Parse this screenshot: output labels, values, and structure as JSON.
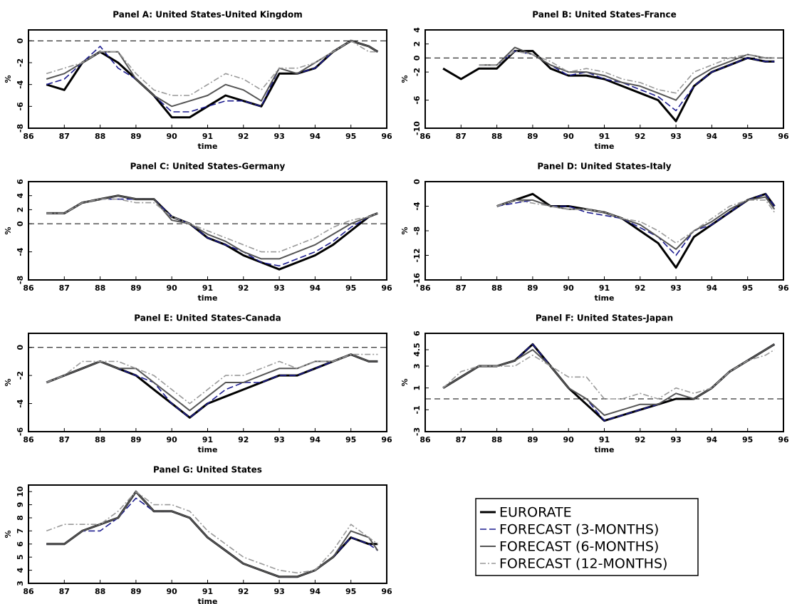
{
  "chart_data": [
    {
      "type": "line",
      "title": "Panel A: United States-United Kingdom",
      "xlabel": "time",
      "ylabel": "%",
      "x": [
        86.5,
        87,
        87.5,
        88,
        88.5,
        89,
        89.5,
        90,
        90.5,
        91,
        91.5,
        92,
        92.5,
        93,
        93.5,
        94,
        94.5,
        95,
        95.5,
        95.75
      ],
      "xlim": [
        86,
        96
      ],
      "xticks": [
        86,
        87,
        88,
        89,
        90,
        91,
        92,
        93,
        94,
        95,
        96
      ],
      "ylim": [
        -8,
        1
      ],
      "yticks": [
        -8,
        -6,
        -4,
        -2,
        0
      ],
      "refline": 0,
      "series": [
        {
          "name": "EURORATE",
          "color": "#000000",
          "values": [
            -4,
            -4.5,
            -2,
            -1,
            -2,
            -3.5,
            -5,
            -7,
            -7,
            -6,
            -5,
            -5.5,
            -6,
            -3,
            -3,
            -2.5,
            -1,
            0,
            -0.5,
            -1
          ]
        },
        {
          "name": "FORECAST (3-MONTHS)",
          "color": "#1c1c8f",
          "values": [
            -4,
            -3.5,
            -2,
            -0.5,
            -2.5,
            -3.5,
            -5,
            -6.5,
            -6.5,
            -6,
            -5.5,
            -5.5,
            -6,
            -2.5,
            -3,
            -2.5,
            -1,
            0,
            -0.5,
            -1
          ]
        },
        {
          "name": "FORECAST (6-MONTHS)",
          "color": "#555555",
          "values": [
            -3.5,
            -3,
            -2,
            -1,
            -1,
            -3.5,
            -5,
            -6,
            -5.5,
            -5,
            -4,
            -4.5,
            -5.5,
            -2.5,
            -3,
            -2,
            -1,
            0,
            -0.5,
            -1
          ]
        },
        {
          "name": "FORECAST (12-MONTHS)",
          "color": "#999999",
          "values": [
            -3,
            -2.5,
            -2,
            -1,
            -1,
            -3,
            -4.5,
            -5,
            -5,
            -4,
            -3,
            -3.5,
            -4.5,
            -2.5,
            -2.5,
            -2,
            -1,
            0,
            -1,
            -1
          ]
        }
      ]
    },
    {
      "type": "line",
      "title": "Panel B: United States-France",
      "xlabel": "time",
      "ylabel": "%",
      "x": [
        86.5,
        87,
        87.5,
        88,
        88.5,
        89,
        89.5,
        90,
        90.5,
        91,
        91.5,
        92,
        92.5,
        93,
        93.5,
        94,
        94.5,
        95,
        95.5,
        95.75
      ],
      "xlim": [
        86,
        96
      ],
      "xticks": [
        86,
        87,
        88,
        89,
        90,
        91,
        92,
        93,
        94,
        95,
        96
      ],
      "ylim": [
        -10,
        4
      ],
      "yticks": [
        -10,
        -6,
        -2,
        0,
        2,
        4
      ],
      "refline": 0,
      "series": [
        {
          "color": "#000000",
          "values": [
            -1.5,
            -3,
            -1.5,
            -1.5,
            1,
            1,
            -1.5,
            -2.5,
            -2.5,
            -3,
            -4,
            -5,
            -6,
            -9,
            -4,
            -2,
            -1,
            0,
            -0.5,
            -0.5
          ]
        },
        {
          "color": "#1c1c8f",
          "values": [
            null,
            null,
            -1,
            -1,
            1,
            0.5,
            -1,
            -2.5,
            -2,
            -3,
            -3.5,
            -4.5,
            -5.5,
            -7.5,
            -4,
            -2,
            -1,
            0,
            -0.5,
            -0.5
          ]
        },
        {
          "color": "#555555",
          "values": [
            null,
            null,
            -1,
            -1,
            1.5,
            0.5,
            -1,
            -2,
            -2,
            -2.5,
            -3.5,
            -4,
            -5,
            -6,
            -3,
            -1.5,
            -0.5,
            0.5,
            0,
            0
          ]
        },
        {
          "color": "#999999",
          "values": [
            null,
            null,
            -1,
            -1,
            1,
            0.5,
            -0.5,
            -2,
            -1.5,
            -2,
            -3,
            -3.5,
            -4.5,
            -5,
            -2,
            -1,
            0,
            0.5,
            0,
            0
          ]
        }
      ]
    },
    {
      "type": "line",
      "title": "Panel C: United States-Germany",
      "xlabel": "time",
      "ylabel": "%",
      "x": [
        86.5,
        87,
        87.5,
        88,
        88.5,
        89,
        89.5,
        90,
        90.5,
        91,
        91.5,
        92,
        92.5,
        93,
        93.5,
        94,
        94.5,
        95,
        95.5,
        95.75
      ],
      "xlim": [
        86,
        96
      ],
      "xticks": [
        86,
        87,
        88,
        89,
        90,
        91,
        92,
        93,
        94,
        95,
        96
      ],
      "ylim": [
        -8,
        6
      ],
      "yticks": [
        -8,
        -4,
        0,
        2,
        4,
        6
      ],
      "refline": 0,
      "series": [
        {
          "color": "#000000",
          "values": [
            1.5,
            1.5,
            3,
            3.5,
            4,
            3.5,
            3.5,
            1,
            0,
            -2,
            -3,
            -4.5,
            -5.5,
            -6.5,
            -5.5,
            -4.5,
            -3,
            -1,
            1,
            1.5
          ]
        },
        {
          "color": "#1c1c8f",
          "values": [
            1.5,
            1.5,
            3,
            3.5,
            3.5,
            3.5,
            3.5,
            1,
            0,
            -2,
            -3,
            -4,
            -5.5,
            -6,
            -5,
            -4,
            -2.5,
            -0.5,
            1,
            1.5
          ]
        },
        {
          "color": "#555555",
          "values": [
            1.5,
            1.5,
            3,
            3.5,
            4,
            3.5,
            3.5,
            0.5,
            0,
            -1.5,
            -2.5,
            -4,
            -5,
            -5,
            -4,
            -3,
            -1.5,
            0,
            1,
            1.5
          ]
        },
        {
          "color": "#999999",
          "values": [
            1.5,
            1.5,
            3,
            3.5,
            3.5,
            3,
            3,
            1,
            0,
            -1,
            -2,
            -3,
            -4,
            -4,
            -3,
            -2,
            -0.5,
            0.5,
            1,
            1.5
          ]
        }
      ]
    },
    {
      "type": "line",
      "title": "Panel D: United States-Italy",
      "xlabel": "time",
      "ylabel": "%",
      "x": [
        86.5,
        87,
        87.5,
        88,
        88.5,
        89,
        89.5,
        90,
        90.5,
        91,
        91.5,
        92,
        92.5,
        93,
        93.5,
        94,
        94.5,
        95,
        95.5,
        95.75
      ],
      "xlim": [
        86,
        96
      ],
      "xticks": [
        86,
        87,
        88,
        89,
        90,
        91,
        92,
        93,
        94,
        95,
        96
      ],
      "ylim": [
        -16,
        0
      ],
      "yticks": [
        -16,
        -12,
        -8,
        -4,
        0
      ],
      "refline": 0,
      "series": [
        {
          "color": "#000000",
          "values": [
            null,
            null,
            null,
            -4,
            -3,
            -2,
            -4,
            -4,
            -4.5,
            -5,
            -6,
            -8,
            -10,
            -14,
            -9,
            -7,
            -5,
            -3,
            -2,
            -4
          ]
        },
        {
          "color": "#1c1c8f",
          "values": [
            null,
            null,
            null,
            -4,
            -3.5,
            -3,
            -4,
            -4,
            -5,
            -5.5,
            -6,
            -7.5,
            -9,
            -12,
            -8,
            -7,
            -5,
            -3,
            -2,
            -4
          ]
        },
        {
          "color": "#555555",
          "values": [
            null,
            null,
            null,
            -4,
            -3,
            -3,
            -4,
            -4.5,
            -4.5,
            -5,
            -6,
            -7,
            -9,
            -11,
            -8,
            -6.5,
            -4.5,
            -3,
            -2.5,
            -4.5
          ]
        },
        {
          "color": "#999999",
          "values": [
            null,
            null,
            null,
            -4,
            -3,
            -3.5,
            -4,
            -4.5,
            -4.5,
            -5,
            -6,
            -6.5,
            -8,
            -10,
            -8,
            -6,
            -4,
            -3,
            -3,
            -5
          ]
        }
      ]
    },
    {
      "type": "line",
      "title": "Panel E: United States-Canada",
      "xlabel": "time",
      "ylabel": "%",
      "x": [
        86.5,
        87,
        87.5,
        88,
        88.5,
        89,
        89.5,
        90,
        90.5,
        91,
        91.5,
        92,
        92.5,
        93,
        93.5,
        94,
        94.5,
        95,
        95.5,
        95.75
      ],
      "xlim": [
        86,
        96
      ],
      "xticks": [
        86,
        87,
        88,
        89,
        90,
        91,
        92,
        93,
        94,
        95,
        96
      ],
      "ylim": [
        -6,
        1
      ],
      "yticks": [
        -6,
        -4,
        -2,
        0
      ],
      "refline": 0,
      "series": [
        {
          "color": "#000000",
          "values": [
            -2.5,
            -2,
            -1.5,
            -1,
            -1.5,
            -2,
            -3,
            -4,
            -5,
            -4,
            -3.5,
            -3,
            -2.5,
            -2,
            -2,
            -1.5,
            -1,
            -0.5,
            -1,
            -1
          ]
        },
        {
          "color": "#1c1c8f",
          "values": [
            -2.5,
            -2,
            -1.5,
            -1,
            -1.5,
            -2,
            -2.5,
            -4,
            -5,
            -4,
            -3,
            -2.5,
            -2.5,
            -2,
            -2,
            -1.5,
            -1,
            -0.5,
            -1,
            -1
          ]
        },
        {
          "color": "#555555",
          "values": [
            -2.5,
            -2,
            -1.5,
            -1,
            -1.5,
            -1.5,
            -2.5,
            -3.5,
            -4.5,
            -3.5,
            -2.5,
            -2.5,
            -2,
            -1.5,
            -1.5,
            -1,
            -1,
            -0.5,
            -1,
            -1
          ]
        },
        {
          "color": "#999999",
          "values": [
            -2.5,
            -2,
            -1,
            -1,
            -1,
            -1.5,
            -2,
            -3,
            -4,
            -3,
            -2,
            -2,
            -1.5,
            -1,
            -1.5,
            -1,
            -1,
            -0.5,
            -0.5,
            -0.5
          ]
        }
      ]
    },
    {
      "type": "line",
      "title": "Panel F: United States-Japan",
      "xlabel": "time",
      "ylabel": "%",
      "x": [
        86.5,
        87,
        87.5,
        88,
        88.5,
        89,
        89.5,
        90,
        90.5,
        91,
        91.5,
        92,
        92.5,
        93,
        93.5,
        94,
        94.5,
        95,
        95.5,
        95.75
      ],
      "xlim": [
        86,
        96
      ],
      "xticks": [
        86,
        87,
        88,
        89,
        90,
        91,
        92,
        93,
        94,
        95,
        96
      ],
      "ylim": [
        -3,
        6
      ],
      "yticks": [
        -3,
        -1,
        1,
        3,
        4.5,
        6
      ],
      "refline": 0,
      "series": [
        {
          "color": "#000000",
          "values": [
            1,
            2,
            3,
            3,
            3.5,
            5,
            3,
            1,
            -0.5,
            -2,
            -1.5,
            -1,
            -0.5,
            0,
            0,
            1,
            2.5,
            3.5,
            4.5,
            5
          ]
        },
        {
          "color": "#1c1c8f",
          "values": [
            1,
            2,
            3,
            3,
            3.5,
            5,
            3,
            1,
            0,
            -2,
            -1.5,
            -1,
            -0.5,
            0.5,
            0,
            1,
            2.5,
            3.5,
            4.5,
            5
          ]
        },
        {
          "color": "#555555",
          "values": [
            1,
            2,
            3,
            3,
            3.5,
            4.5,
            3,
            1,
            0,
            -1.5,
            -1,
            -0.5,
            -0.5,
            0.5,
            0,
            1,
            2.5,
            3.5,
            4.5,
            5
          ]
        },
        {
          "color": "#999999",
          "values": [
            1,
            2.5,
            3,
            3,
            3,
            4,
            3,
            2,
            2,
            0,
            0,
            0.5,
            0,
            1,
            0.5,
            1,
            2.5,
            3.5,
            4,
            4.5
          ]
        }
      ]
    },
    {
      "type": "line",
      "title": "Panel G: United States",
      "xlabel": "time",
      "ylabel": "%",
      "x": [
        86.5,
        87,
        87.5,
        88,
        88.5,
        89,
        89.5,
        90,
        90.5,
        91,
        91.5,
        92,
        92.5,
        93,
        93.5,
        94,
        94.5,
        95,
        95.5,
        95.75
      ],
      "xlim": [
        86,
        96
      ],
      "xticks": [
        86,
        87,
        88,
        89,
        90,
        91,
        92,
        93,
        94,
        95,
        96
      ],
      "ylim": [
        3,
        10.5
      ],
      "yticks": [
        3,
        4,
        5,
        6,
        7,
        8,
        9,
        10
      ],
      "series": [
        {
          "color": "#000000",
          "values": [
            6,
            6,
            7,
            7.5,
            8,
            10,
            8.5,
            8.5,
            8,
            6.5,
            5.5,
            4.5,
            4,
            3.5,
            3.5,
            4,
            5,
            6.5,
            6,
            6
          ]
        },
        {
          "color": "#1c1c8f",
          "values": [
            6,
            6,
            7,
            7,
            8,
            9.5,
            8.5,
            8.5,
            8,
            6.5,
            5.5,
            4.5,
            4,
            3.5,
            3.5,
            4,
            5,
            6.5,
            6,
            5.5
          ]
        },
        {
          "color": "#555555",
          "values": [
            6,
            6,
            7,
            7.5,
            8,
            10,
            8.5,
            8.5,
            8,
            6.5,
            5.5,
            4.5,
            4,
            3.5,
            3.5,
            4,
            5,
            7,
            6.5,
            5.5
          ]
        },
        {
          "color": "#999999",
          "values": [
            7,
            7.5,
            7.5,
            7.5,
            8.5,
            10,
            9,
            9,
            8.5,
            7,
            6,
            5,
            4.5,
            4,
            3.8,
            4,
            5.5,
            7.5,
            6.5,
            6
          ]
        }
      ]
    }
  ]
}
